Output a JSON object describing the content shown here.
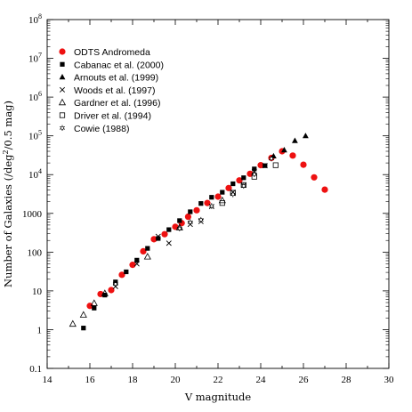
{
  "chart_data": {
    "type": "scatter",
    "xlabel": "V magnitude",
    "ylabel_prefix": "Number of Galaxies (/deg",
    "ylabel_sup": "2",
    "ylabel_suffix": "/0.5 mag)",
    "xlim": [
      14,
      30
    ],
    "ylim": [
      0.1,
      100000000
    ],
    "yscale": "log",
    "x_ticks": [
      {
        "value": 14,
        "label": "14"
      },
      {
        "value": 16,
        "label": "16"
      },
      {
        "value": 18,
        "label": "18"
      },
      {
        "value": 20,
        "label": "20"
      },
      {
        "value": 22,
        "label": "22"
      },
      {
        "value": 24,
        "label": "24"
      },
      {
        "value": 26,
        "label": "26"
      },
      {
        "value": 28,
        "label": "28"
      },
      {
        "value": 30,
        "label": "30"
      }
    ],
    "y_ticks": [
      {
        "value": 0.1,
        "base": "0.1",
        "exp": ""
      },
      {
        "value": 1,
        "base": "1",
        "exp": ""
      },
      {
        "value": 10,
        "base": "10",
        "exp": ""
      },
      {
        "value": 100,
        "base": "100",
        "exp": ""
      },
      {
        "value": 1000,
        "base": "1000",
        "exp": ""
      },
      {
        "value": 10000,
        "base": "10",
        "exp": "4"
      },
      {
        "value": 100000,
        "base": "10",
        "exp": "5"
      },
      {
        "value": 1000000,
        "base": "10",
        "exp": "6"
      },
      {
        "value": 10000000,
        "base": "10",
        "exp": "7"
      },
      {
        "value": 100000000,
        "base": "10",
        "exp": "8"
      }
    ],
    "legend_position": "top-left",
    "series": [
      {
        "name": "ODTS Andromeda",
        "marker": "filled-circle",
        "color": "#ee1111",
        "points": [
          [
            16.0,
            4.1
          ],
          [
            16.5,
            8.3
          ],
          [
            17.0,
            10.5
          ],
          [
            17.5,
            26
          ],
          [
            18.0,
            47
          ],
          [
            18.5,
            105
          ],
          [
            19.0,
            215
          ],
          [
            19.5,
            290
          ],
          [
            20.0,
            450
          ],
          [
            20.3,
            560
          ],
          [
            20.6,
            820
          ],
          [
            21.0,
            1200
          ],
          [
            21.5,
            1850
          ],
          [
            22.0,
            2700
          ],
          [
            22.5,
            4500
          ],
          [
            23.0,
            7100
          ],
          [
            23.5,
            10500
          ],
          [
            24.0,
            17500
          ],
          [
            24.5,
            27000
          ],
          [
            25.0,
            40000
          ],
          [
            25.5,
            31000
          ],
          [
            26.0,
            18000
          ],
          [
            26.5,
            8500
          ],
          [
            27.0,
            4100
          ]
        ]
      },
      {
        "name": "Cabanac et al. (2000)",
        "marker": "filled-square",
        "color": "#000000",
        "points": [
          [
            15.7,
            1.1
          ],
          [
            16.2,
            3.6
          ],
          [
            16.7,
            7.8
          ],
          [
            17.2,
            17
          ],
          [
            17.7,
            31
          ],
          [
            18.2,
            62
          ],
          [
            18.7,
            125
          ],
          [
            19.2,
            225
          ],
          [
            19.7,
            380
          ],
          [
            20.2,
            650
          ],
          [
            20.7,
            1100
          ],
          [
            21.2,
            1800
          ],
          [
            21.7,
            2600
          ],
          [
            22.2,
            3500
          ],
          [
            22.7,
            5800
          ],
          [
            23.2,
            8300
          ],
          [
            23.7,
            14000
          ],
          [
            24.2,
            17000
          ]
        ]
      },
      {
        "name": "Arnouts et al. (1999)",
        "marker": "filled-triangle",
        "color": "#000000",
        "points": [
          [
            24.6,
            30000
          ],
          [
            25.1,
            43000
          ],
          [
            25.6,
            75000
          ],
          [
            26.1,
            100000
          ]
        ]
      },
      {
        "name": "Woods et al. (1997)",
        "marker": "cross",
        "color": "#000000",
        "points": [
          [
            17.2,
            13
          ],
          [
            18.2,
            50
          ],
          [
            19.2,
            255
          ],
          [
            19.7,
            170
          ],
          [
            20.7,
            520
          ],
          [
            21.2,
            620
          ],
          [
            21.7,
            1500
          ],
          [
            22.7,
            3500
          ],
          [
            23.2,
            5300
          ],
          [
            23.7,
            12000
          ],
          [
            24.2,
            17000
          ]
        ]
      },
      {
        "name": "Gardner et al. (1996)",
        "marker": "open-triangle",
        "color": "#000000",
        "points": [
          [
            15.2,
            1.4
          ],
          [
            15.7,
            2.4
          ],
          [
            16.2,
            4.8
          ],
          [
            16.7,
            8.6
          ],
          [
            18.7,
            76
          ],
          [
            20.2,
            430
          ],
          [
            22.2,
            2150
          ]
        ]
      },
      {
        "name": "Driver et al. (1994)",
        "marker": "open-square",
        "color": "#000000",
        "points": [
          [
            22.2,
            1850
          ],
          [
            22.7,
            3400
          ],
          [
            23.2,
            5400
          ],
          [
            23.7,
            8800
          ],
          [
            24.7,
            17500
          ]
        ]
      },
      {
        "name": "Cowie (1988)",
        "marker": "star",
        "color": "#000000",
        "points": [
          [
            17.2,
            15
          ],
          [
            20.2,
            410
          ],
          [
            20.7,
            590
          ],
          [
            21.2,
            680
          ],
          [
            21.7,
            1550
          ],
          [
            22.7,
            3100
          ],
          [
            23.2,
            5100
          ],
          [
            23.7,
            10200
          ],
          [
            24.5,
            26000
          ]
        ]
      }
    ]
  }
}
